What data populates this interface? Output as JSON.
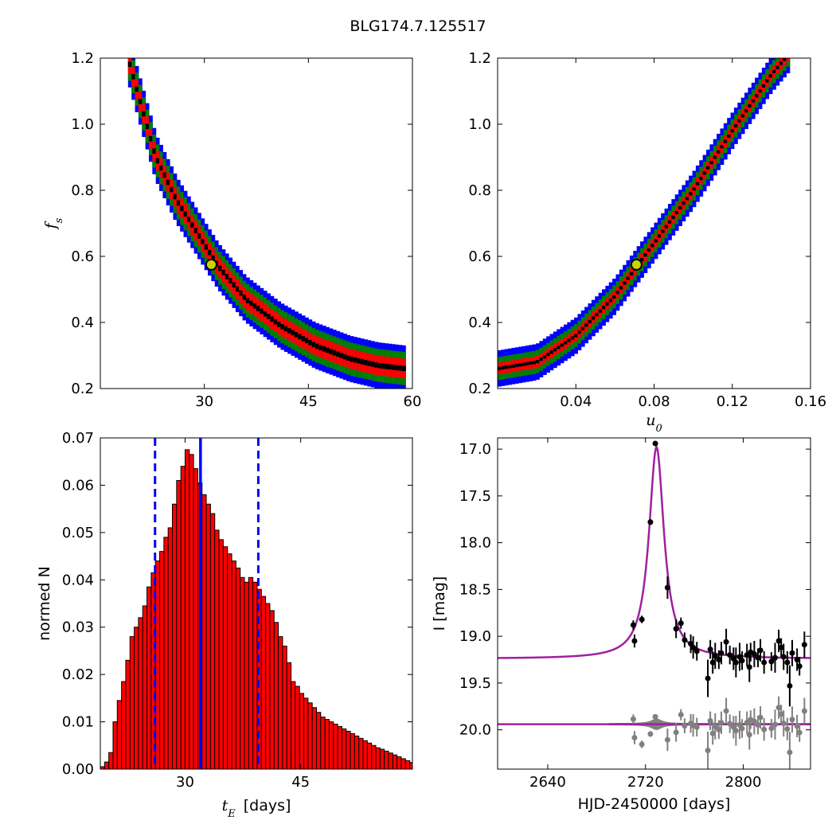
{
  "figure_title": "BLG174.7.125517",
  "colors": {
    "blue": "#0000ff",
    "green": "#008000",
    "red": "#ff0000",
    "black": "#000000",
    "gray": "#808080",
    "magenta": "#a020a0",
    "marker_fill": "#c8d400"
  },
  "chart_data": [
    {
      "id": "panel-tl",
      "type": "heatmap",
      "title": "",
      "xlabel": "",
      "ylabel": "f",
      "ylabel_sub": "s",
      "xlim": [
        15,
        60
      ],
      "ylim": [
        0.2,
        1.2
      ],
      "xticks": [
        30,
        45,
        60
      ],
      "yticks": [
        0.2,
        0.4,
        0.6,
        0.8,
        1.0,
        1.2
      ],
      "best_fit": {
        "x": 31,
        "y": 0.575
      },
      "band": {
        "center": [
          [
            19,
            1.2
          ],
          [
            21,
            1.05
          ],
          [
            23,
            0.9
          ],
          [
            26,
            0.77
          ],
          [
            29,
            0.67
          ],
          [
            32,
            0.57
          ],
          [
            36,
            0.47
          ],
          [
            41,
            0.39
          ],
          [
            46,
            0.33
          ],
          [
            51,
            0.29
          ],
          [
            55,
            0.27
          ],
          [
            59,
            0.26
          ]
        ],
        "half_widths": {
          "blue": 0.07,
          "green": 0.05,
          "red": 0.03,
          "black": 0.008
        }
      }
    },
    {
      "id": "panel-tr",
      "type": "heatmap",
      "title": "",
      "xlabel": "u",
      "xlabel_sub": "0",
      "ylabel": "",
      "xlim": [
        0.0,
        0.16
      ],
      "ylim": [
        0.2,
        1.2
      ],
      "xticks": [
        0.04,
        0.08,
        0.12,
        0.16
      ],
      "yticks": [
        0.2,
        0.4,
        0.6,
        0.8,
        1.0,
        1.2
      ],
      "best_fit": {
        "x": 0.071,
        "y": 0.575
      },
      "band": {
        "center": [
          [
            0.0,
            0.26
          ],
          [
            0.02,
            0.28
          ],
          [
            0.04,
            0.36
          ],
          [
            0.06,
            0.48
          ],
          [
            0.08,
            0.64
          ],
          [
            0.1,
            0.8
          ],
          [
            0.12,
            0.98
          ],
          [
            0.14,
            1.15
          ],
          [
            0.15,
            1.22
          ]
        ],
        "half_widths": {
          "blue": 0.055,
          "green": 0.035,
          "red": 0.018,
          "black": 0.005
        }
      }
    },
    {
      "id": "panel-bl",
      "type": "bar",
      "title": "",
      "xlabel": "t",
      "xlabel_sub": "E",
      "xlabel_unit": "[days]",
      "ylabel": "normed N",
      "xlim": [
        19,
        59.5
      ],
      "ylim": [
        0.0,
        0.07
      ],
      "xticks": [
        30,
        45
      ],
      "yticks": [
        0.0,
        0.01,
        0.02,
        0.03,
        0.04,
        0.05,
        0.06,
        0.07
      ],
      "bin_start": 19,
      "bin_width": 0.55,
      "values": [
        0.0005,
        0.0015,
        0.0035,
        0.01,
        0.0145,
        0.0185,
        0.023,
        0.028,
        0.03,
        0.032,
        0.0345,
        0.0385,
        0.0415,
        0.044,
        0.046,
        0.049,
        0.051,
        0.056,
        0.061,
        0.064,
        0.0675,
        0.0665,
        0.0635,
        0.0605,
        0.058,
        0.056,
        0.054,
        0.0505,
        0.0485,
        0.047,
        0.0455,
        0.044,
        0.0425,
        0.0405,
        0.0395,
        0.0405,
        0.0395,
        0.038,
        0.0365,
        0.035,
        0.0335,
        0.031,
        0.028,
        0.026,
        0.0225,
        0.0185,
        0.0175,
        0.016,
        0.015,
        0.014,
        0.013,
        0.012,
        0.011,
        0.0105,
        0.01,
        0.0095,
        0.009,
        0.0085,
        0.008,
        0.0075,
        0.007,
        0.0065,
        0.006,
        0.0055,
        0.005,
        0.0045,
        0.0042,
        0.0038,
        0.0034,
        0.003,
        0.0026,
        0.0022,
        0.0018,
        0.0014
      ],
      "vlines": [
        {
          "x": 26.1,
          "style": "dashed"
        },
        {
          "x": 32.0,
          "style": "solid"
        },
        {
          "x": 39.5,
          "style": "dashed"
        }
      ]
    },
    {
      "id": "panel-br",
      "type": "scatter",
      "title": "",
      "xlabel": "HJD-2450000 [days]",
      "ylabel": "I [mag]",
      "xlim": [
        2599,
        2855
      ],
      "ylim": [
        20.42,
        16.88
      ],
      "xticks": [
        2640,
        2720,
        2800
      ],
      "yticks": [
        17.0,
        17.5,
        18.0,
        18.5,
        19.0,
        19.5,
        20.0
      ],
      "model": {
        "t0": 2729,
        "base": 19.24,
        "peak": 16.98,
        "tau": 7.5
      },
      "residual_baseline": 19.94,
      "points": [
        {
          "x": 2710,
          "y": 18.88,
          "err": 0.05
        },
        {
          "x": 2711,
          "y": 19.05,
          "err": 0.07
        },
        {
          "x": 2717,
          "y": 18.82,
          "err": 0.04
        },
        {
          "x": 2724,
          "y": 17.78,
          "err": 0.03
        },
        {
          "x": 2728,
          "y": 16.94,
          "err": 0.02
        },
        {
          "x": 2738,
          "y": 18.48,
          "err": 0.12
        },
        {
          "x": 2745,
          "y": 18.92,
          "err": 0.1
        },
        {
          "x": 2749,
          "y": 18.86,
          "err": 0.06
        },
        {
          "x": 2752,
          "y": 19.04,
          "err": 0.08
        },
        {
          "x": 2757,
          "y": 19.08,
          "err": 0.1
        },
        {
          "x": 2759,
          "y": 19.12,
          "err": 0.12
        },
        {
          "x": 2762,
          "y": 19.16,
          "err": 0.1
        },
        {
          "x": 2771,
          "y": 19.45,
          "err": 0.2
        },
        {
          "x": 2773,
          "y": 19.14,
          "err": 0.1
        },
        {
          "x": 2775,
          "y": 19.28,
          "err": 0.12
        },
        {
          "x": 2777,
          "y": 19.21,
          "err": 0.14
        },
        {
          "x": 2780,
          "y": 19.25,
          "err": 0.1
        },
        {
          "x": 2782,
          "y": 19.18,
          "err": 0.12
        },
        {
          "x": 2786,
          "y": 19.06,
          "err": 0.14
        },
        {
          "x": 2789,
          "y": 19.2,
          "err": 0.1
        },
        {
          "x": 2792,
          "y": 19.24,
          "err": 0.12
        },
        {
          "x": 2794,
          "y": 19.28,
          "err": 0.16
        },
        {
          "x": 2797,
          "y": 19.22,
          "err": 0.15
        },
        {
          "x": 2799,
          "y": 19.26,
          "err": 0.1
        },
        {
          "x": 2803,
          "y": 19.2,
          "err": 0.12
        },
        {
          "x": 2805,
          "y": 19.33,
          "err": 0.16
        },
        {
          "x": 2806,
          "y": 19.17,
          "err": 0.1
        },
        {
          "x": 2809,
          "y": 19.19,
          "err": 0.14
        },
        {
          "x": 2812,
          "y": 19.23,
          "err": 0.1
        },
        {
          "x": 2814,
          "y": 19.15,
          "err": 0.12
        },
        {
          "x": 2817,
          "y": 19.28,
          "err": 0.12
        },
        {
          "x": 2823,
          "y": 19.27,
          "err": 0.1
        },
        {
          "x": 2826,
          "y": 19.23,
          "err": 0.16
        },
        {
          "x": 2829,
          "y": 19.05,
          "err": 0.12
        },
        {
          "x": 2831,
          "y": 19.12,
          "err": 0.1
        },
        {
          "x": 2833,
          "y": 19.22,
          "err": 0.14
        },
        {
          "x": 2836,
          "y": 19.28,
          "err": 0.12
        },
        {
          "x": 2838,
          "y": 19.53,
          "err": 0.22
        },
        {
          "x": 2840,
          "y": 19.18,
          "err": 0.14
        },
        {
          "x": 2844,
          "y": 19.25,
          "err": 0.12
        },
        {
          "x": 2846,
          "y": 19.32,
          "err": 0.1
        },
        {
          "x": 2850,
          "y": 19.09,
          "err": 0.14
        }
      ]
    }
  ]
}
